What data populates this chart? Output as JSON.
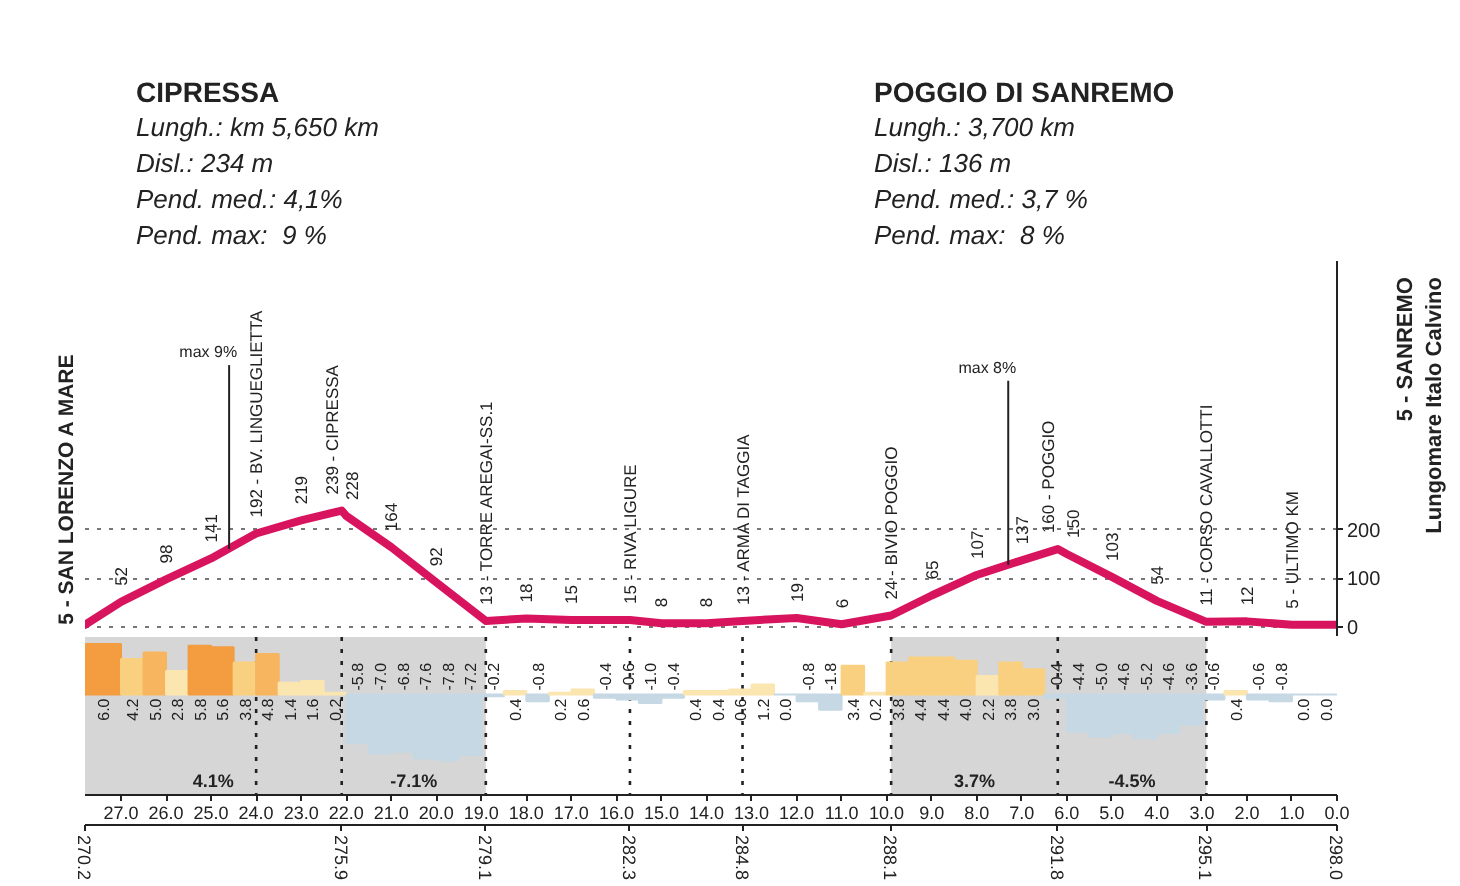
{
  "chart_data": [
    {
      "type": "line",
      "color": "#d8145f",
      "annotations": [
        "CIPRESSA\nLungh.: km 5,650 km\nDisl.: 234 m\nPend. med.: 4,1%\nPend. max:  9 %",
        "POGGIO DI SANREMO\nLungh.: 3,700 km\nDisl.: 136 m\nPend. med.: 3,7 %\nPend. max:  8 %",
        "5 - SANREMO\nLungomare Italo Calvino",
        {
          "text": "max 9%",
          "x": 273.4,
          "y": 160
        },
        {
          "text": "max 8%",
          "x": 290.7,
          "y": 128
        }
      ],
      "x": [
        270.2,
        271.0,
        272.0,
        273.0,
        274.0,
        275.0,
        275.9,
        276.0,
        277.0,
        278.0,
        279.1,
        280.0,
        281.0,
        282.3,
        283.0,
        284.0,
        284.8,
        286.0,
        287.0,
        288.1,
        289.0,
        290.0,
        291.0,
        291.8,
        292.0,
        293.0,
        294.0,
        295.1,
        296.0,
        297.0,
        298.0
      ],
      "values": [
        5,
        52,
        98,
        141,
        192,
        219,
        239,
        228,
        164,
        92,
        13,
        18,
        15,
        15,
        8,
        8,
        13,
        19,
        6,
        24,
        65,
        107,
        137,
        160,
        150,
        103,
        54,
        11,
        12,
        5,
        5
      ],
      "value_labels": [
        "5 - SAN LORENZO A MARE",
        "52",
        "98",
        "141",
        "192 - BV. LINGUEGLIETTA",
        "219",
        "239 - CIPRESSA",
        "228",
        "164",
        "92",
        "13 - TORRE AREGAI-SS.1",
        "18",
        "15",
        "15 - RIVA LIGURE",
        "8",
        "8",
        "13 - ARMA DI TAGGIA",
        "19",
        "6",
        "24 - BIVIO POGGIO",
        "65",
        "107",
        "137",
        "160 - POGGIO",
        "150",
        "103",
        "54",
        "11 - CORSO CAVALLOTTI",
        "12",
        "5 - ULTIMO KM",
        null
      ],
      "xlim": [
        270.2,
        298.0
      ],
      "ylim": [
        -20,
        750
      ],
      "yticks": [
        0,
        100,
        200
      ],
      "grid": "y",
      "tick_labels": "y"
    },
    {
      "type": "bar",
      "x": [
        270.6,
        271.25,
        271.75,
        272.25,
        272.75,
        273.25,
        273.75,
        274.25,
        274.75,
        275.25,
        275.75,
        276.25,
        276.75,
        277.25,
        277.75,
        278.25,
        278.75,
        279.25,
        279.75,
        280.25,
        280.75,
        281.25,
        281.75,
        282.25,
        282.75,
        283.25,
        283.75,
        284.25,
        284.75,
        285.25,
        285.75,
        286.25,
        286.75,
        287.25,
        287.75,
        288.25,
        288.75,
        289.25,
        289.75,
        290.25,
        290.75,
        291.25,
        291.75,
        292.25,
        292.75,
        293.25,
        293.75,
        294.25,
        294.75,
        295.25,
        295.75,
        296.25,
        296.75,
        297.25,
        297.75
      ],
      "values": [
        6.0,
        4.2,
        5.0,
        2.8,
        5.8,
        5.6,
        3.8,
        4.8,
        1.4,
        1.6,
        0.2,
        -5.8,
        -7.0,
        -6.8,
        -7.6,
        -7.8,
        -7.2,
        -0.2,
        0.4,
        -0.8,
        0.2,
        0.6,
        -0.4,
        -0.6,
        -1.0,
        -0.4,
        0.4,
        0.4,
        0.6,
        1.2,
        0.0,
        -0.8,
        -1.8,
        3.4,
        0.2,
        3.8,
        4.4,
        4.4,
        4.0,
        2.2,
        3.8,
        3.0,
        -0.4,
        -4.4,
        -5.0,
        -4.6,
        -5.2,
        -4.6,
        -3.6,
        -0.6,
        0.4,
        -0.6,
        -0.8,
        0.0,
        0.0
      ],
      "value_labels": [
        "6.0",
        "4.2",
        "5.0",
        "2.8",
        "5.8",
        "5.6",
        "3.8",
        "4.8",
        "1.4",
        "1.6",
        "0.2",
        "-5.8",
        "-7.0",
        "-6.8",
        "-7.6",
        "-7.8",
        "-7.2",
        "-0.2",
        "0.4",
        "-0.8",
        "0.2",
        "0.6",
        "-0.4",
        "-0.6",
        "-1.0",
        "-0.4",
        "0.4",
        "0.4",
        "0.6",
        "1.2",
        "0.0",
        "-0.8",
        "-1.8",
        "3.4",
        "0.2",
        "3.8",
        "4.4",
        "4.4",
        "4.0",
        "2.2",
        "3.8",
        "3.0",
        "-0.4",
        "-4.4",
        "-5.0",
        "-4.6",
        "-5.2",
        "-4.6",
        "-3.6",
        "-0.6",
        "0.4",
        "-0.6",
        "-0.8",
        "0.0",
        "0.0"
      ],
      "colors": [
        "#f39c40",
        "#f9cf80",
        "#f6b55e",
        "#fce6b0",
        "#f39c40",
        "#f39c40",
        "#f9cf80",
        "#f6b55e",
        "#fce6b0",
        "#fce6b0",
        "#fce6b0",
        "#c5d8e4",
        "#c5d8e4",
        "#c5d8e4",
        "#c5d8e4",
        "#c5d8e4",
        "#c5d8e4",
        "#c5d8e4",
        "#fce6b0",
        "#c5d8e4",
        "#fce6b0",
        "#fce6b0",
        "#c5d8e4",
        "#c5d8e4",
        "#c5d8e4",
        "#c5d8e4",
        "#fce6b0",
        "#fce6b0",
        "#fce6b0",
        "#fce6b0",
        "#c5d8e4",
        "#c5d8e4",
        "#c5d8e4",
        "#f9cf80",
        "#fce6b0",
        "#f9cf80",
        "#f9cf80",
        "#f9cf80",
        "#f9cf80",
        "#fce6b0",
        "#f9cf80",
        "#f9cf80",
        "#c5d8e4",
        "#c5d8e4",
        "#c5d8e4",
        "#c5d8e4",
        "#c5d8e4",
        "#c5d8e4",
        "#c5d8e4",
        "#c5d8e4",
        "#fce6b0",
        "#c5d8e4",
        "#c5d8e4",
        "#c5d8e4",
        "#c5d8e4"
      ],
      "xlim": [
        270.2,
        298.0
      ],
      "xticks": [
        270.2,
        275.9,
        279.1,
        282.3,
        284.8,
        288.1,
        291.8,
        295.1,
        {
          "value": 298,
          "label": "298.0"
        }
      ],
      "x2lim": [
        27.8,
        0
      ],
      "x2ticks": [
        {
          "value": 27,
          "label": "27.0"
        },
        {
          "value": 26,
          "label": "26.0"
        },
        {
          "value": 25,
          "label": "25.0"
        },
        {
          "value": 24,
          "label": "24.0"
        },
        {
          "value": 23,
          "label": "23.0"
        },
        {
          "value": 22,
          "label": "22.0"
        },
        {
          "value": 21,
          "label": "21.0"
        },
        {
          "value": 20,
          "label": "20.0"
        },
        {
          "value": 19,
          "label": "19.0"
        },
        {
          "value": 18,
          "label": "18.0"
        },
        {
          "value": 17,
          "label": "17.0"
        },
        {
          "value": 16,
          "label": "16.0"
        },
        {
          "value": 15,
          "label": "15.0"
        },
        {
          "value": 14,
          "label": "14.0"
        },
        {
          "value": 13,
          "label": "13.0"
        },
        {
          "value": 12,
          "label": "12.0"
        },
        {
          "value": 11,
          "label": "11.0"
        },
        {
          "value": 10,
          "label": "10.0"
        },
        {
          "value": 9,
          "label": "9.0"
        },
        {
          "value": 8,
          "label": "8.0"
        },
        {
          "value": 7,
          "label": "7.0"
        },
        {
          "value": 6,
          "label": "6.0"
        },
        {
          "value": 5,
          "label": "5.0"
        },
        {
          "value": 4,
          "label": "4.0"
        },
        {
          "value": 3,
          "label": "3.0"
        },
        {
          "value": 2,
          "label": "2.0"
        },
        {
          "value": 1,
          "label": "1.0"
        },
        {
          "value": 0,
          "label": "0.0"
        }
      ],
      "bands": [
        {
          "axis": "x",
          "from": 270.2,
          "to": 275.9,
          "label": "4.1%",
          "color": "#d6d6d6"
        },
        {
          "axis": "x",
          "from": 275.9,
          "to": 279.1,
          "label": "-7.1%",
          "color": "#d6d6d6"
        },
        {
          "axis": "x",
          "from": 288.1,
          "to": 291.8,
          "label": "3.7%",
          "color": "#d6d6d6"
        },
        {
          "axis": "x",
          "from": 291.8,
          "to": 295.1,
          "label": "-4.5%",
          "color": "#d6d6d6"
        }
      ],
      "ref_lines": [
        {
          "axis": "x",
          "value": 274.0,
          "line_style": "dotted",
          "color": "#222222"
        },
        {
          "axis": "x",
          "value": 275.9,
          "line_style": "dotted",
          "color": "#222222"
        },
        {
          "axis": "x",
          "value": 279.1,
          "line_style": "dotted",
          "color": "#222222"
        },
        {
          "axis": "x",
          "value": 282.3,
          "line_style": "dotted",
          "color": "#222222"
        },
        {
          "axis": "x",
          "value": 284.8,
          "line_style": "dotted",
          "color": "#222222"
        },
        {
          "axis": "x",
          "value": 288.1,
          "line_style": "dotted",
          "color": "#222222"
        },
        {
          "axis": "x",
          "value": 291.8,
          "line_style": "dotted",
          "color": "#222222"
        },
        {
          "axis": "x",
          "value": 295.1,
          "line_style": "dotted",
          "color": "#222222"
        }
      ],
      "tick_labels": "x"
    }
  ]
}
